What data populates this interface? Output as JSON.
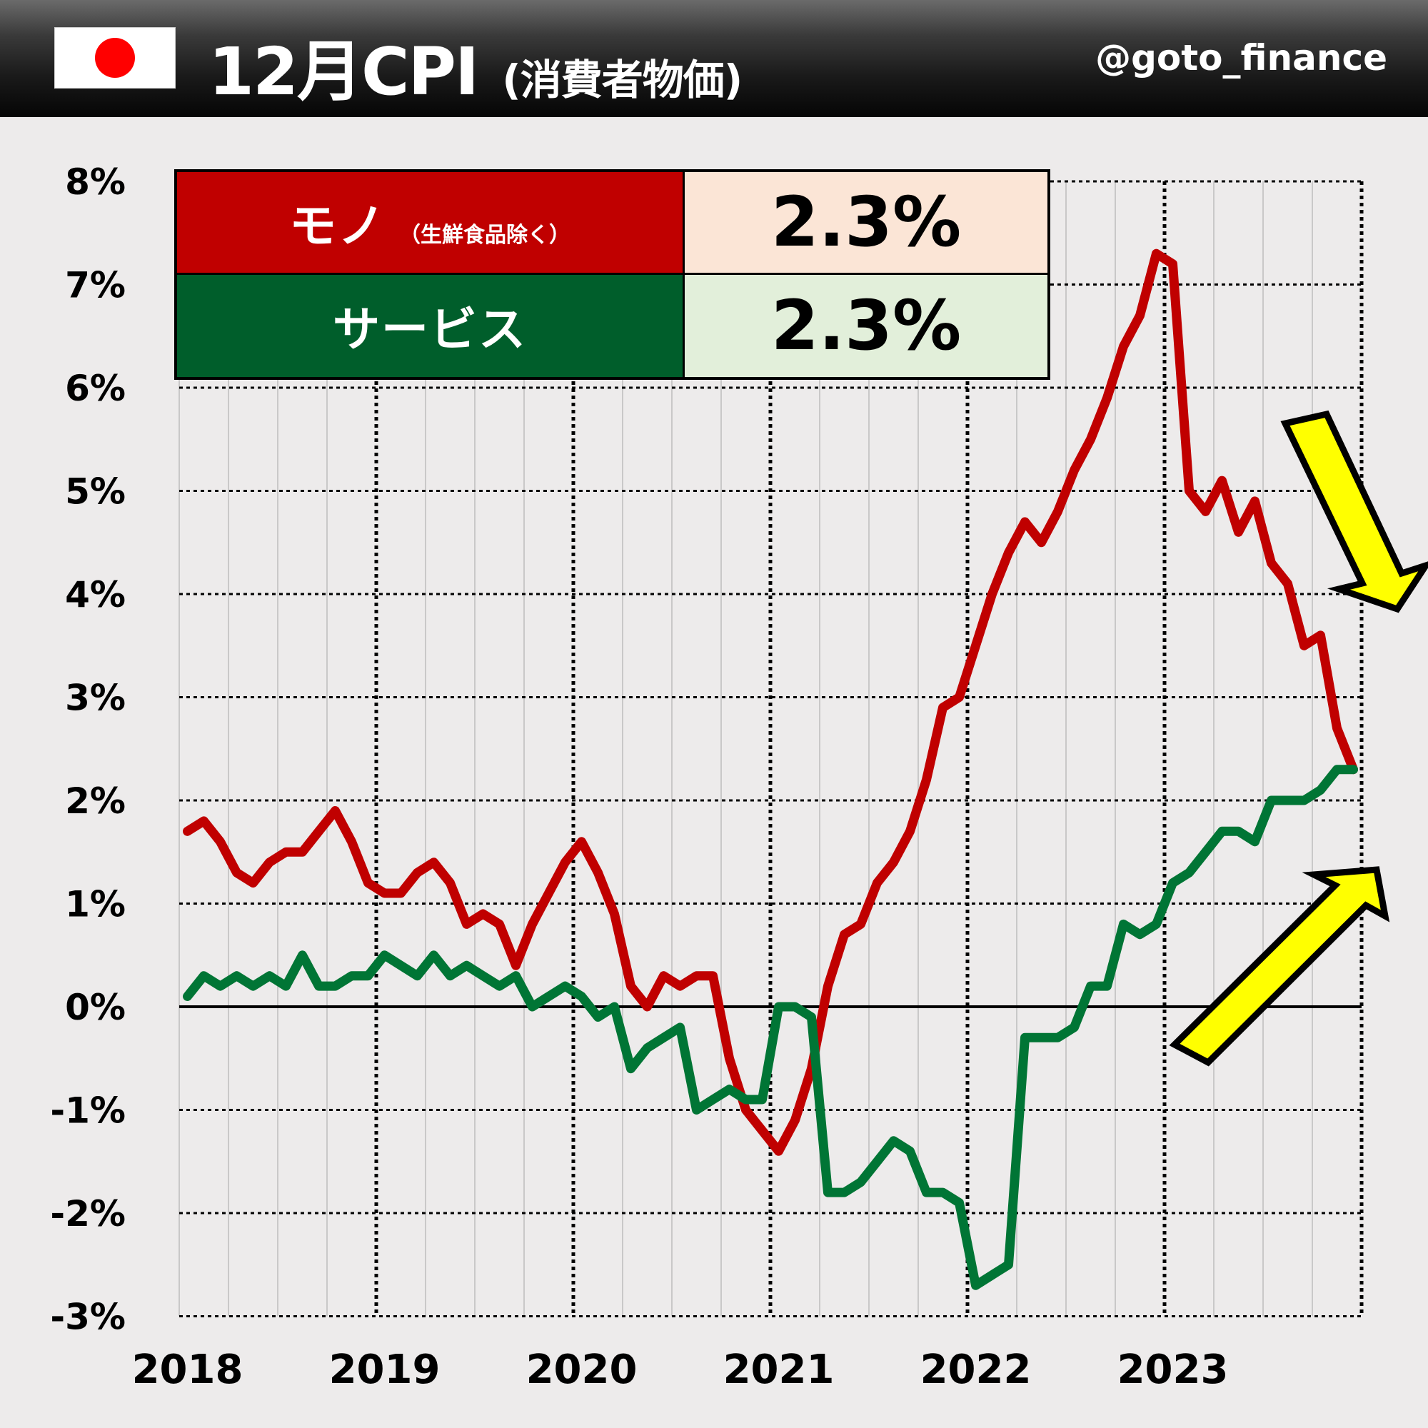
{
  "header": {
    "flag_icon": "japan-flag-icon",
    "title_main": "12月CPI",
    "title_sub": "(消費者物価)",
    "handle": "@goto_finance"
  },
  "legend": {
    "rows": [
      {
        "label": "モノ",
        "sublabel": "（生鮮食品除く）",
        "value": "2.3%",
        "color": "#c00000",
        "value_bg": "#fbe5d6"
      },
      {
        "label": "サービス",
        "sublabel": "",
        "value": "2.3%",
        "color": "#005e2b",
        "value_bg": "#e2efda"
      }
    ]
  },
  "annotations": {
    "down_arrow": {
      "icon": "arrow-down-right-icon",
      "color": "#ffff00"
    },
    "up_arrow": {
      "icon": "arrow-up-right-icon",
      "color": "#ffff00"
    }
  },
  "chart_data": {
    "type": "line",
    "title": "12月CPI (消費者物価)",
    "xlabel": "",
    "ylabel": "",
    "ylim": [
      -3,
      8
    ],
    "yticks": [
      "8%",
      "7%",
      "6%",
      "5%",
      "4%",
      "3%",
      "2%",
      "1%",
      "0%",
      "-1%",
      "-2%",
      "-3%"
    ],
    "ytick_values": [
      8,
      7,
      6,
      5,
      4,
      3,
      2,
      1,
      0,
      -1,
      -2,
      -3
    ],
    "xticks": [
      "2018",
      "2019",
      "2020",
      "2021",
      "2022",
      "2023"
    ],
    "x_start": "2018-01",
    "x_end": "2023-12",
    "frequency": "monthly",
    "grid": true,
    "legend_position": "top-left table",
    "series": [
      {
        "name": "モノ（生鮮食品除く）",
        "color": "#c00000",
        "latest": 2.3,
        "values": [
          1.7,
          1.8,
          1.6,
          1.3,
          1.2,
          1.4,
          1.5,
          1.5,
          1.7,
          1.9,
          1.6,
          1.2,
          1.1,
          1.1,
          1.3,
          1.4,
          1.2,
          0.8,
          0.9,
          0.8,
          0.4,
          0.8,
          1.1,
          1.4,
          1.6,
          1.3,
          0.9,
          0.2,
          0.0,
          0.3,
          0.2,
          0.3,
          0.3,
          -0.5,
          -1.0,
          -1.2,
          -1.4,
          -1.1,
          -0.6,
          0.2,
          0.7,
          0.8,
          1.2,
          1.4,
          1.7,
          2.2,
          2.9,
          3.0,
          3.5,
          4.0,
          4.4,
          4.7,
          4.5,
          4.8,
          5.2,
          5.5,
          5.9,
          6.4,
          6.7,
          7.3,
          7.2,
          5.0,
          4.8,
          5.1,
          4.6,
          4.9,
          4.3,
          4.1,
          3.5,
          3.6,
          2.7,
          2.3
        ]
      },
      {
        "name": "サービス",
        "color": "#007535",
        "latest": 2.3,
        "values": [
          0.1,
          0.3,
          0.2,
          0.3,
          0.2,
          0.3,
          0.2,
          0.5,
          0.2,
          0.2,
          0.3,
          0.3,
          0.5,
          0.4,
          0.3,
          0.5,
          0.3,
          0.4,
          0.3,
          0.2,
          0.3,
          0.0,
          0.1,
          0.2,
          0.1,
          -0.1,
          0.0,
          -0.6,
          -0.4,
          -0.3,
          -0.2,
          -1.0,
          -0.9,
          -0.8,
          -0.9,
          -0.9,
          0.0,
          0.0,
          -0.1,
          -1.8,
          -1.8,
          -1.7,
          -1.5,
          -1.3,
          -1.4,
          -1.8,
          -1.8,
          -1.9,
          -2.7,
          -2.6,
          -2.5,
          -0.3,
          -0.3,
          -0.3,
          -0.2,
          0.2,
          0.2,
          0.8,
          0.7,
          0.8,
          1.2,
          1.3,
          1.5,
          1.7,
          1.7,
          1.6,
          2.0,
          2.0,
          2.0,
          2.1,
          2.3,
          2.3
        ]
      }
    ]
  }
}
